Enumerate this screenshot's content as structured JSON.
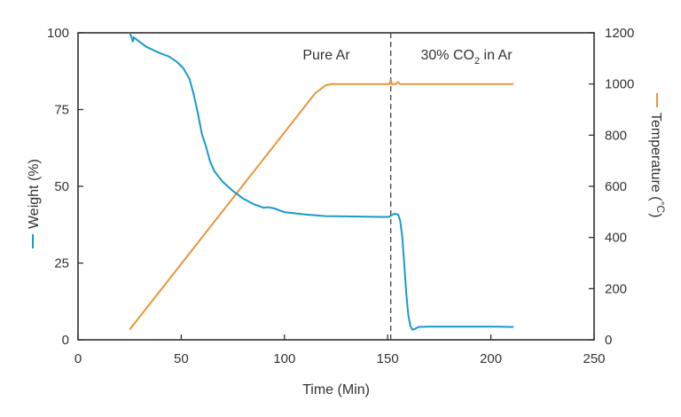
{
  "chart_data": {
    "type": "line",
    "title": "",
    "xlabel": "Time (Min)",
    "ylabel_left": "Weight (%)",
    "ylabel_right_main": "Temperature (",
    "ylabel_right_deg": "°C",
    "ylabel_right_close": ")",
    "xlim": [
      0,
      250
    ],
    "ylim_left": [
      0,
      100
    ],
    "ylim_right": [
      0,
      1200
    ],
    "x_ticks": [
      "0",
      "50",
      "100",
      "150",
      "200",
      "250"
    ],
    "y_left_ticks": [
      "0",
      "25",
      "50",
      "75",
      "100"
    ],
    "y_right_ticks": [
      "0",
      "200",
      "400",
      "600",
      "800",
      "1000",
      "1200"
    ],
    "grid": false,
    "colors": {
      "weight": "#1a9bc7",
      "temperature": "#e8963a",
      "axis": "#222222"
    },
    "annotations": {
      "region1": "Pure Ar",
      "region2_prefix": "30% CO",
      "region2_sub": "2",
      "region2_suffix": " in Ar",
      "divider_x": 151.5
    },
    "series": [
      {
        "name": "Weight",
        "axis": "left",
        "x": [
          25,
          26,
          26.5,
          27,
          28,
          30,
          33,
          36,
          40,
          44,
          48,
          51,
          54,
          56,
          58,
          60,
          62,
          64,
          66,
          70,
          75,
          80,
          85,
          90,
          92,
          95,
          100,
          110,
          120,
          130,
          140,
          150,
          151,
          152,
          153,
          154,
          155,
          156,
          157,
          158,
          159,
          160,
          161,
          162,
          163,
          165,
          170,
          180,
          190,
          200,
          211
        ],
        "y": [
          100,
          98.5,
          97,
          98.5,
          98,
          97,
          95.5,
          94.5,
          93.3,
          92.3,
          90.5,
          88.5,
          85,
          80,
          74,
          67,
          63,
          58,
          55,
          51.5,
          48.5,
          46,
          44.2,
          43,
          43.2,
          42.8,
          41.6,
          40.8,
          40.3,
          40.2,
          40.1,
          40,
          40.2,
          40.6,
          41,
          41,
          40.8,
          39,
          34,
          25,
          15,
          8,
          4.5,
          3.3,
          3.5,
          4.2,
          4.3,
          4.3,
          4.3,
          4.3,
          4.2
        ]
      },
      {
        "name": "Temperature",
        "axis": "right",
        "x": [
          25,
          115,
          120,
          123,
          125,
          130,
          140,
          150,
          151,
          151.5,
          152,
          153,
          154,
          155,
          156,
          157,
          160,
          170,
          180,
          190,
          200,
          211
        ],
        "y": [
          40,
          965,
          995,
          1000,
          1000,
          1000,
          1000,
          1000,
          1000,
          1020,
          1000,
          1000,
          1000,
          1008,
          1000,
          1000,
          1000,
          1000,
          1000,
          1000,
          1000,
          1000
        ]
      }
    ]
  }
}
